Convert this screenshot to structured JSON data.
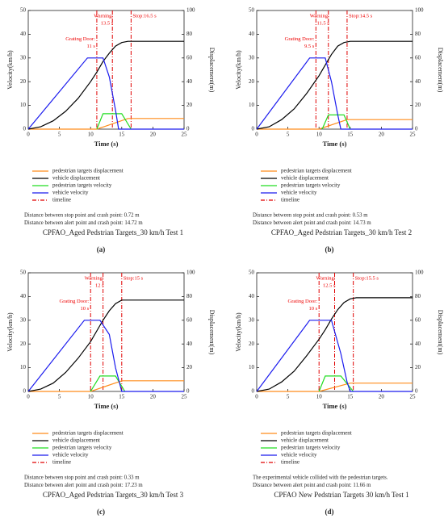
{
  "chart_data": [
    {
      "type": "line",
      "title": "CPFAO_Aged Pedstrian Targets_30 km/h Test 1",
      "label": "(a)",
      "x_label": "Time (s)",
      "y_label": "Velocity(km/h)",
      "y2_label": "Displacement(m)",
      "xlim": [
        0,
        25
      ],
      "xticks": [
        0,
        5,
        10,
        15,
        20,
        25
      ],
      "ylim": [
        0,
        50
      ],
      "yticks": [
        0,
        10,
        20,
        30,
        40,
        50
      ],
      "y2lim": [
        0,
        100
      ],
      "y2ticks": [
        0,
        20,
        40,
        60,
        80,
        100
      ],
      "series": [
        {
          "name": "pedestrian targets displacement",
          "color": "#ff8c1a",
          "axis": "y2",
          "x": [
            0,
            11,
            16,
            25
          ],
          "values": [
            0,
            0,
            9,
            9
          ]
        },
        {
          "name": "vehicle displacement",
          "color": "#000000",
          "axis": "y2",
          "x": [
            0,
            2,
            4,
            6,
            8,
            10,
            11,
            12,
            13,
            14,
            15,
            16,
            25
          ],
          "values": [
            0,
            2,
            7,
            15,
            26,
            40,
            48,
            57,
            64,
            70,
            73,
            74,
            74
          ]
        },
        {
          "name": "pedestrian targets velocity",
          "color": "#22dd22",
          "x": [
            11,
            12,
            15,
            16.5
          ],
          "values": [
            0,
            6.5,
            6.5,
            0
          ]
        },
        {
          "name": "vehicle velocity",
          "color": "#1a1aee",
          "x": [
            0,
            9.5,
            12,
            13,
            14,
            14.5,
            25
          ],
          "values": [
            0,
            30,
            30,
            22,
            8,
            0,
            0
          ]
        }
      ],
      "timeline": {
        "name": "timeline",
        "color": "#e00000",
        "x": [
          11,
          13.5,
          16.5
        ],
        "labels": [
          [
            "Grating Door:",
            "11 s"
          ],
          [
            "Warning:",
            "13.5 s"
          ],
          [
            "Stop:16.5 s"
          ]
        ]
      },
      "notes": [
        "Distance between stop point and crash point: 0.72 m",
        "Distance between alert point and crash point: 14.72 m"
      ]
    },
    {
      "type": "line",
      "title": "CPFAO_Aged Pedstrian Targets_30 km/h Test 2",
      "label": "(b)",
      "x_label": "Time (s)",
      "y_label": "Velocity(km/h)",
      "y2_label": "Displacement(m)",
      "xlim": [
        0,
        25
      ],
      "xticks": [
        0,
        5,
        10,
        15,
        20,
        25
      ],
      "ylim": [
        0,
        50
      ],
      "yticks": [
        0,
        10,
        20,
        30,
        40,
        50
      ],
      "y2lim": [
        0,
        100
      ],
      "y2ticks": [
        0,
        20,
        40,
        60,
        80,
        100
      ],
      "series": [
        {
          "name": "pedestrian targets displacement",
          "color": "#ff8c1a",
          "axis": "y2",
          "x": [
            0,
            10,
            14.5,
            25
          ],
          "values": [
            0,
            0,
            8,
            8
          ]
        },
        {
          "name": "vehicle displacement",
          "color": "#000000",
          "axis": "y2",
          "x": [
            0,
            2,
            4,
            6,
            8,
            10,
            11,
            12,
            13,
            14,
            15,
            25
          ],
          "values": [
            0,
            2,
            8,
            17,
            30,
            45,
            54,
            63,
            70,
            73,
            74,
            74
          ]
        },
        {
          "name": "pedestrian targets velocity",
          "color": "#22dd22",
          "x": [
            10.5,
            11.5,
            14,
            15
          ],
          "values": [
            0,
            6,
            6,
            0
          ]
        },
        {
          "name": "vehicle velocity",
          "color": "#1a1aee",
          "x": [
            0,
            8.5,
            11,
            12,
            13,
            13.5,
            25
          ],
          "values": [
            0,
            30,
            30,
            20,
            6,
            0,
            0
          ]
        }
      ],
      "timeline": {
        "name": "timeline",
        "color": "#e00000",
        "x": [
          9.5,
          11.5,
          14.5
        ],
        "labels": [
          [
            "Grating Door:",
            "9.5 s"
          ],
          [
            "Warning:",
            "11.5 s"
          ],
          [
            "Stop:14.5 s"
          ]
        ]
      },
      "notes": [
        "Distance between stop point and crash point: 0.53 m",
        "Distance between alert point and crash point: 14.73 m"
      ]
    },
    {
      "type": "line",
      "title": "CPFAO_Aged Pedstrian Targets_30 km/h Test 3",
      "label": "(c)",
      "x_label": "Time (s)",
      "y_label": "Velocity(km/h)",
      "y2_label": "Displacement(m)",
      "xlim": [
        0,
        25
      ],
      "xticks": [
        0,
        5,
        10,
        15,
        20,
        25
      ],
      "ylim": [
        0,
        50
      ],
      "yticks": [
        0,
        10,
        20,
        30,
        40,
        50
      ],
      "y2lim": [
        0,
        100
      ],
      "y2ticks": [
        0,
        20,
        40,
        60,
        80,
        100
      ],
      "series": [
        {
          "name": "pedestrian targets displacement",
          "color": "#ff8c1a",
          "axis": "y2",
          "x": [
            0,
            10,
            15,
            25
          ],
          "values": [
            0,
            0,
            9,
            9
          ]
        },
        {
          "name": "vehicle displacement",
          "color": "#000000",
          "axis": "y2",
          "x": [
            0,
            2,
            4,
            6,
            8,
            10,
            11,
            12,
            13,
            14,
            15,
            25
          ],
          "values": [
            0,
            2,
            7,
            16,
            28,
            42,
            51,
            60,
            68,
            74,
            77,
            77
          ]
        },
        {
          "name": "pedestrian targets velocity",
          "color": "#22dd22",
          "x": [
            10,
            11.5,
            14,
            15.5
          ],
          "values": [
            0,
            6.5,
            6.5,
            0
          ]
        },
        {
          "name": "vehicle velocity",
          "color": "#1a1aee",
          "x": [
            0,
            9,
            11.5,
            13,
            14,
            15,
            25
          ],
          "values": [
            0,
            30,
            30,
            24,
            10,
            0,
            0
          ]
        }
      ],
      "timeline": {
        "name": "timeline",
        "color": "#e00000",
        "x": [
          10,
          12,
          15
        ],
        "labels": [
          [
            "Grating Door:",
            "10 s"
          ],
          [
            "Warning:",
            "12 s"
          ],
          [
            "Stop:15 s"
          ]
        ]
      },
      "notes": [
        "Distance between stop point and crash point: 0.33 m",
        "Distance between alert point and crash point: 17.23 m"
      ]
    },
    {
      "type": "line",
      "title": "CPFAO New Pedstrian Targets 30 km/h Test 1",
      "label": "(d)",
      "x_label": "Time (s)",
      "y_label": "Velocity(km/h)",
      "y2_label": "Displacement(m)",
      "xlim": [
        0,
        25
      ],
      "xticks": [
        0,
        5,
        10,
        15,
        20,
        25
      ],
      "ylim": [
        0,
        50
      ],
      "yticks": [
        0,
        10,
        20,
        30,
        40,
        50
      ],
      "y2lim": [
        0,
        100
      ],
      "y2ticks": [
        0,
        20,
        40,
        60,
        80,
        100
      ],
      "series": [
        {
          "name": "pedestrian targets displacement",
          "color": "#ff8c1a",
          "axis": "y2",
          "x": [
            0,
            10,
            15,
            25
          ],
          "values": [
            0,
            0,
            7,
            7
          ]
        },
        {
          "name": "vehicle displacement",
          "color": "#000000",
          "axis": "y2",
          "x": [
            0,
            2,
            4,
            6,
            8,
            10,
            11,
            12,
            13,
            14,
            15,
            16,
            25
          ],
          "values": [
            0,
            2,
            8,
            17,
            30,
            44,
            52,
            61,
            69,
            75,
            78,
            79,
            79
          ]
        },
        {
          "name": "pedestrian targets velocity",
          "color": "#22dd22",
          "x": [
            10,
            11,
            13.5,
            15.5
          ],
          "values": [
            0,
            6.5,
            6.5,
            0
          ]
        },
        {
          "name": "vehicle velocity",
          "color": "#1a1aee",
          "x": [
            0,
            8.5,
            12,
            13.5,
            14.5,
            15,
            25
          ],
          "values": [
            0,
            30,
            30,
            16,
            4,
            0,
            0
          ]
        }
      ],
      "timeline": {
        "name": "timeline",
        "color": "#e00000",
        "x": [
          10,
          12.5,
          15.5
        ],
        "labels": [
          [
            "Grating Door:",
            "10 s"
          ],
          [
            "Warning:",
            "12.5 s"
          ],
          [
            "Stop:15.5 s"
          ]
        ]
      },
      "notes": [
        "The experimental vehicle collided with the pedestrian targets.",
        "Distance between alert point and crash point: 11.66 m"
      ]
    }
  ]
}
